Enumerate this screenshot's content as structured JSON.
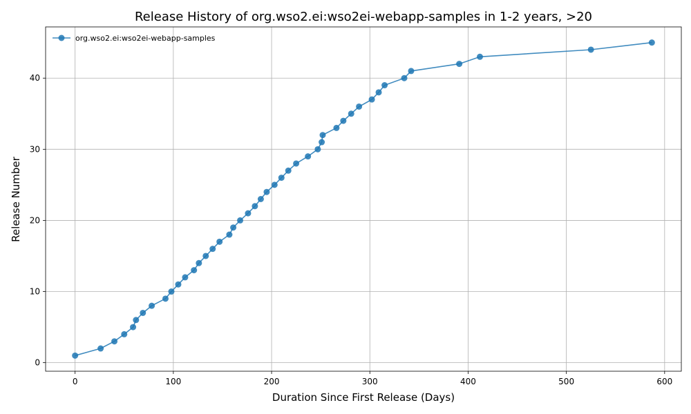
{
  "chart_data": {
    "type": "line",
    "title": "Release History of org.wso2.ei:wso2ei-webapp-samples in 1-2 years, >20",
    "xlabel": "Duration Since First Release (Days)",
    "ylabel": "Release Number",
    "xlim": [
      -30,
      617
    ],
    "ylim": [
      -1.2,
      47.2
    ],
    "xticks": [
      0,
      100,
      200,
      300,
      400,
      500,
      600
    ],
    "yticks": [
      0,
      10,
      20,
      30,
      40
    ],
    "grid": true,
    "legend_position": "top-left",
    "series": [
      {
        "name": "org.wso2.ei:wso2ei-webapp-samples",
        "color": "#1f77b4",
        "marker": "circle",
        "x": [
          0,
          26,
          40,
          50,
          59,
          62,
          69,
          78,
          92,
          98,
          105,
          112,
          121,
          126,
          133,
          140,
          147,
          157,
          161,
          168,
          176,
          183,
          189,
          195,
          203,
          210,
          217,
          225,
          237,
          247,
          251,
          252,
          266,
          273,
          281,
          289,
          302,
          309,
          315,
          335,
          342,
          391,
          412,
          525,
          587
        ],
        "y": [
          1,
          2,
          3,
          4,
          5,
          6,
          7,
          8,
          9,
          10,
          11,
          12,
          13,
          14,
          15,
          16,
          17,
          18,
          19,
          20,
          21,
          22,
          23,
          24,
          25,
          26,
          27,
          28,
          29,
          30,
          31,
          32,
          33,
          34,
          35,
          36,
          37,
          38,
          39,
          40,
          41,
          42,
          43,
          44,
          45
        ]
      }
    ]
  }
}
